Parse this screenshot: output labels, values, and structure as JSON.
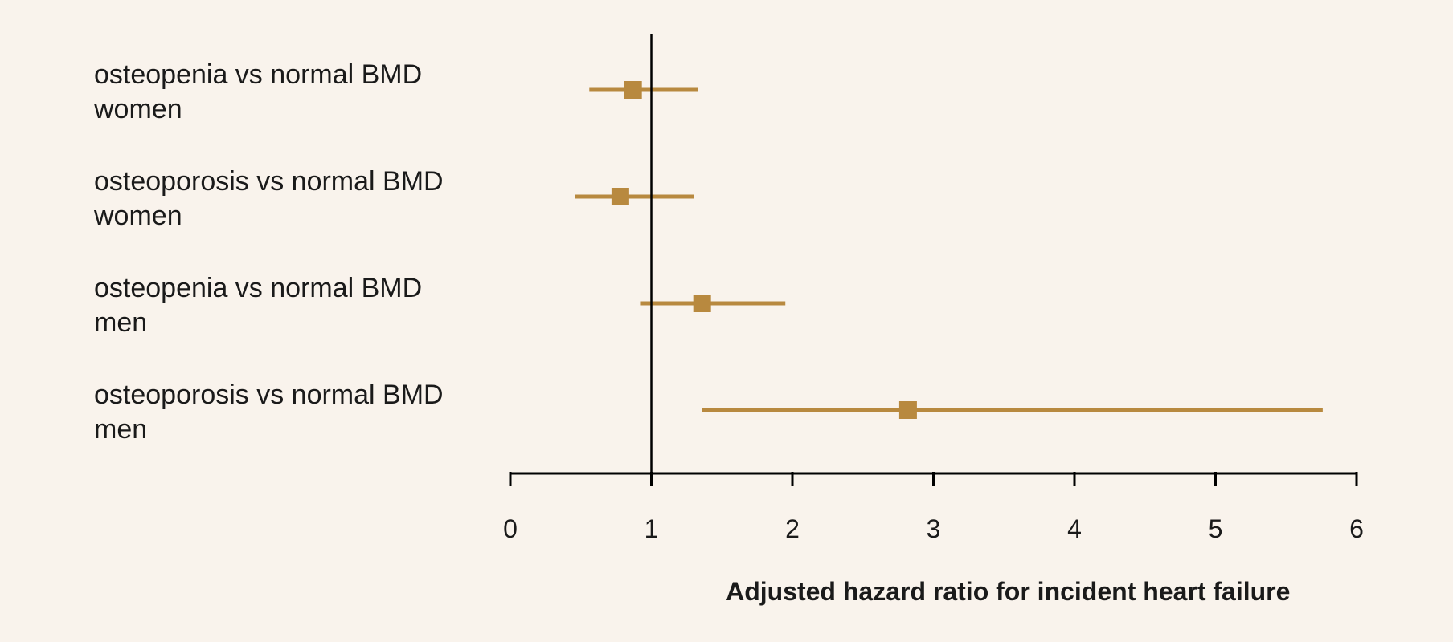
{
  "chart_data": {
    "type": "forest",
    "xlabel": "Adjusted hazard ratio for incident heart failure",
    "xlim": [
      0,
      6
    ],
    "xticks": [
      "0",
      "1",
      "2",
      "3",
      "4",
      "5",
      "6"
    ],
    "reference_line": 1,
    "marker_color": "#b8893f",
    "rows": [
      {
        "label_line1": "osteopenia vs normal BMD",
        "label_line2": "women",
        "estimate": 0.87,
        "lower": 0.56,
        "upper": 1.33
      },
      {
        "label_line1": "osteoporosis vs normal BMD",
        "label_line2": "women",
        "estimate": 0.78,
        "lower": 0.46,
        "upper": 1.3
      },
      {
        "label_line1": "osteopenia vs normal BMD",
        "label_line2": "men",
        "estimate": 1.36,
        "lower": 0.92,
        "upper": 1.95
      },
      {
        "label_line1": "osteoporosis vs normal BMD",
        "label_line2": "men",
        "estimate": 2.82,
        "lower": 1.36,
        "upper": 5.76
      }
    ]
  }
}
